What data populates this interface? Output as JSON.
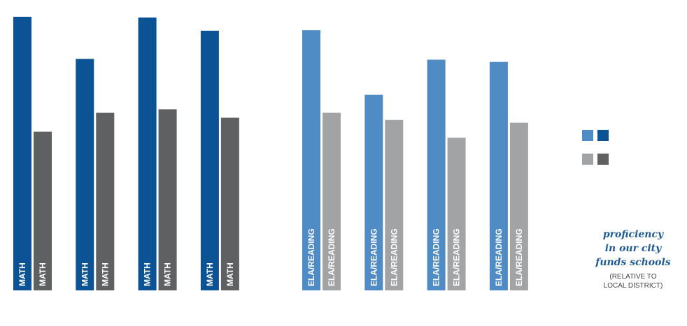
{
  "chart_data": {
    "type": "bar",
    "orientation": "vertical",
    "ylim": [
      0,
      100
    ],
    "grid": false,
    "groups": [
      {
        "subject": "MATH",
        "bar_label": "MATH",
        "colors": {
          "city_funds": "#0b5394",
          "local_district": "#5f6062"
        },
        "values": {
          "city_funds": [
            100,
            84.6,
            99.7,
            94.9
          ],
          "local_district": [
            58,
            64.9,
            66.2,
            63.1
          ]
        }
      },
      {
        "subject": "ELA/READING",
        "bar_label": "ELA/READING",
        "colors": {
          "city_funds": "#4f8bc4",
          "local_district": "#a2a3a5"
        },
        "values": {
          "city_funds": [
            95.1,
            71.5,
            84.3,
            83.5
          ],
          "local_district": [
            64.9,
            62.3,
            55.8,
            61.3
          ]
        }
      }
    ]
  },
  "legend": {
    "swatches": [
      {
        "name": "ela-city-funds",
        "color": "#4f8bc4"
      },
      {
        "name": "math-city-funds",
        "color": "#0b5394"
      },
      {
        "name": "ela-local-district",
        "color": "#a2a3a5"
      },
      {
        "name": "math-local-district",
        "color": "#5f6062"
      }
    ]
  },
  "caption": {
    "title": "proficiency\nin our city\nfunds schools",
    "note": "(RELATIVE TO\nLOCAL DISTRICT)"
  }
}
